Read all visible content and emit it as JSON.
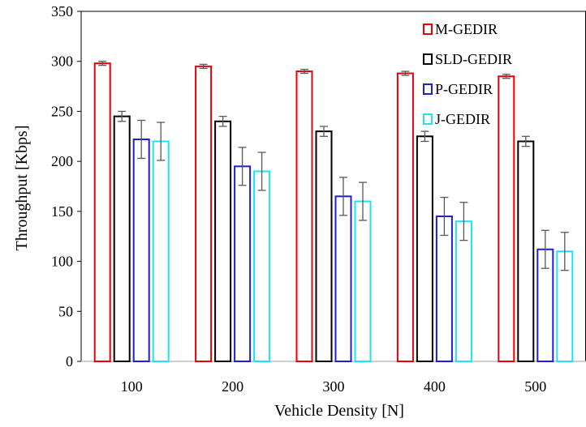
{
  "chart_data": {
    "type": "bar",
    "title": "",
    "xlabel": "Vehicle Density [N]",
    "ylabel": "Throughput [Kbps]",
    "categories": [
      "100",
      "200",
      "300",
      "400",
      "500"
    ],
    "ylim": [
      0,
      350
    ],
    "yticks": [
      "0",
      "50",
      "100",
      "150",
      "200",
      "250",
      "300",
      "350"
    ],
    "grid": false,
    "legend_position": "top-right",
    "series": [
      {
        "name": "M-GEDIR",
        "color": "#e8000b",
        "values": [
          298,
          295,
          290,
          288,
          285
        ],
        "errors": [
          2,
          2,
          2,
          2,
          2
        ]
      },
      {
        "name": "SLD-GEDIR",
        "color": "#000000",
        "values": [
          245,
          240,
          230,
          225,
          220
        ],
        "errors": [
          5,
          5,
          5,
          5,
          5
        ]
      },
      {
        "name": "P-GEDIR",
        "color": "#1f1fd6",
        "values": [
          222,
          195,
          165,
          145,
          112
        ],
        "errors": [
          19,
          19,
          19,
          19,
          19
        ]
      },
      {
        "name": "J-GEDIR",
        "color": "#1fe3f0",
        "values": [
          220,
          190,
          160,
          140,
          110
        ],
        "errors": [
          19,
          19,
          19,
          19,
          19
        ]
      }
    ]
  }
}
